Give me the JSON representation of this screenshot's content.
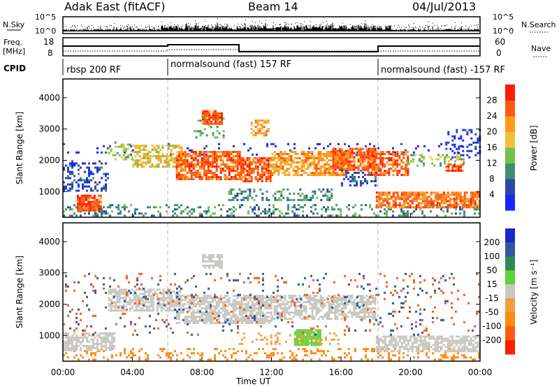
{
  "header": {
    "station": "Adak East (fitACF)",
    "beam": "Beam 14",
    "date": "04/Jul/2013"
  },
  "strip_labels": {
    "nsky": "N.Sky",
    "nsearch": "N.Search",
    "freq": "Freq.",
    "freq_unit": "[MHz]",
    "nave": "Nave",
    "cpid": "CPID",
    "noise_ticks": [
      "10^5",
      "10^0"
    ],
    "freq_ticks": [
      "18",
      "8"
    ],
    "nave_ticks": [
      "60",
      "0"
    ]
  },
  "cpid_segments": [
    {
      "start": "00:00",
      "label": "rbsp 200 RF"
    },
    {
      "start": "06:00",
      "label": "normalsound (fast) 157 RF"
    },
    {
      "start": "18:00",
      "label": "normalsound (fast) -157 RF"
    }
  ],
  "colors": {
    "frame": "#000000",
    "divider": "#b4b4b4",
    "missing": "#ffffff"
  },
  "chart_data": [
    {
      "type": "heatmap",
      "title": "",
      "xlabel": "Time UT",
      "ylabel": "Slant Range [km]",
      "x_ticks": [
        "00:00",
        "04:00",
        "08:00",
        "12:00",
        "16:00",
        "20:00",
        "00:00"
      ],
      "xlim": [
        0,
        24
      ],
      "ylim": [
        180,
        4600
      ],
      "y_ticks": [
        1000,
        2000,
        3000,
        4000
      ],
      "colorbar": {
        "label": "Power [dB]",
        "ticks": [
          "4",
          "8",
          "12",
          "16",
          "20",
          "24",
          "28"
        ],
        "bins": [
          {
            "max": 4,
            "color": "#1428ff"
          },
          {
            "max": 8,
            "color": "#2a4aa8"
          },
          {
            "max": 12,
            "color": "#3f8f6e"
          },
          {
            "max": 16,
            "color": "#6fc24a"
          },
          {
            "max": 20,
            "color": "#f0c03c"
          },
          {
            "max": 24,
            "color": "#ff9a1e"
          },
          {
            "max": 28,
            "color": "#ff5a10"
          },
          {
            "max": 32,
            "color": "#ff1e00"
          }
        ]
      },
      "layers": [
        {
          "t0": 0.0,
          "t1": 24.0,
          "r0": 2150,
          "r1": 2550,
          "value": 2,
          "density": 0.06
        },
        {
          "t0": 0.0,
          "t1": 24.0,
          "r0": 200,
          "r1": 600,
          "value": 10,
          "density": 0.28
        },
        {
          "t0": 0.8,
          "t1": 2.2,
          "r0": 400,
          "r1": 900,
          "value": 27,
          "density": 0.82
        },
        {
          "t0": 0.0,
          "t1": 2.6,
          "r0": 1000,
          "r1": 2000,
          "value": 5,
          "density": 0.35
        },
        {
          "t0": 2.6,
          "t1": 4.0,
          "r0": 2000,
          "r1": 2600,
          "value": 15,
          "density": 0.35
        },
        {
          "t0": 4.0,
          "t1": 6.8,
          "r0": 1800,
          "r1": 2500,
          "value": 18,
          "density": 0.55
        },
        {
          "t0": 6.5,
          "t1": 10.2,
          "r0": 1400,
          "r1": 2300,
          "value": 26,
          "density": 0.75
        },
        {
          "t0": 7.5,
          "t1": 9.3,
          "r0": 2700,
          "r1": 3500,
          "value": 12,
          "density": 0.25
        },
        {
          "t0": 8.0,
          "t1": 9.2,
          "r0": 3150,
          "r1": 3600,
          "value": 27,
          "density": 0.85
        },
        {
          "t0": 10.2,
          "t1": 12.0,
          "r0": 1300,
          "r1": 2100,
          "value": 26,
          "density": 0.8
        },
        {
          "t0": 10.8,
          "t1": 11.8,
          "r0": 2800,
          "r1": 3300,
          "value": 22,
          "density": 0.6
        },
        {
          "t0": 12.0,
          "t1": 16.5,
          "r0": 1500,
          "r1": 2300,
          "value": 22,
          "density": 0.7
        },
        {
          "t0": 9.5,
          "t1": 15.5,
          "r0": 700,
          "r1": 1100,
          "value": 10,
          "density": 0.35
        },
        {
          "t0": 15.5,
          "t1": 18.0,
          "r0": 1700,
          "r1": 2400,
          "value": 26,
          "density": 0.78
        },
        {
          "t0": 16.0,
          "t1": 18.0,
          "r0": 1200,
          "r1": 1700,
          "value": 6,
          "density": 0.4
        },
        {
          "t0": 17.5,
          "t1": 19.8,
          "r0": 1500,
          "r1": 2300,
          "value": 26,
          "density": 0.7
        },
        {
          "t0": 18.0,
          "t1": 24.0,
          "r0": 500,
          "r1": 1000,
          "value": 25,
          "density": 0.75
        },
        {
          "t0": 19.5,
          "t1": 23.0,
          "r0": 1800,
          "r1": 2200,
          "value": 14,
          "density": 0.3
        },
        {
          "t0": 22.0,
          "t1": 23.0,
          "r0": 1650,
          "r1": 1900,
          "value": 26,
          "density": 0.7
        },
        {
          "t0": 22.0,
          "t1": 24.0,
          "r0": 2100,
          "r1": 3000,
          "value": 3,
          "density": 0.25
        }
      ]
    },
    {
      "type": "heatmap",
      "title": "",
      "xlabel": "Time UT",
      "ylabel": "Slant Range [km]",
      "x_ticks": [
        "00:00",
        "04:00",
        "08:00",
        "12:00",
        "16:00",
        "20:00",
        "00:00"
      ],
      "xlim": [
        0,
        24
      ],
      "ylim": [
        180,
        4600
      ],
      "y_ticks": [
        1000,
        2000,
        3000,
        4000
      ],
      "colorbar": {
        "label": "Velocity [m s⁻¹]",
        "ticks": [
          "200",
          "100",
          "50",
          "15",
          "-15",
          "-50",
          "-100",
          "-200"
        ],
        "bins": [
          {
            "max": 999,
            "color": "#1a28d0"
          },
          {
            "max": 200,
            "color": "#2a5aa0"
          },
          {
            "max": 100,
            "color": "#2f8a50"
          },
          {
            "max": 50,
            "color": "#5ad23a"
          },
          {
            "max": 15,
            "color": "#c8c8c0"
          },
          {
            "max": -15,
            "color": "#f0a040"
          },
          {
            "max": -50,
            "color": "#ff8a10"
          },
          {
            "max": -100,
            "color": "#ff5a10"
          },
          {
            "max": -200,
            "color": "#ff1e00"
          }
        ]
      },
      "layers": [
        {
          "t0": 0.0,
          "t1": 24.0,
          "r0": 200,
          "r1": 600,
          "value": -60,
          "density": 0.22
        },
        {
          "t0": 0.0,
          "t1": 3.0,
          "r0": 500,
          "r1": 1100,
          "value": 0,
          "density": 0.7
        },
        {
          "t0": 2.6,
          "t1": 6.8,
          "r0": 1800,
          "r1": 2500,
          "value": 0,
          "density": 0.65
        },
        {
          "t0": 6.5,
          "t1": 12.0,
          "r0": 1400,
          "r1": 2300,
          "value": 0,
          "density": 0.72
        },
        {
          "t0": 8.0,
          "t1": 9.2,
          "r0": 3150,
          "r1": 3600,
          "value": 0,
          "density": 0.7
        },
        {
          "t0": 12.0,
          "t1": 18.0,
          "r0": 1500,
          "r1": 2300,
          "value": 0,
          "density": 0.65
        },
        {
          "t0": 13.3,
          "t1": 14.8,
          "r0": 700,
          "r1": 1200,
          "value": 30,
          "density": 0.85
        },
        {
          "t0": 18.0,
          "t1": 24.0,
          "r0": 500,
          "r1": 1000,
          "value": 0,
          "density": 0.7
        },
        {
          "t0": 10.0,
          "t1": 16.0,
          "r0": 700,
          "r1": 1100,
          "value": -30,
          "density": 0.2
        },
        {
          "t0": 0.0,
          "t1": 24.0,
          "r0": 1000,
          "r1": 3000,
          "value": 150,
          "density": 0.04
        },
        {
          "t0": 0.0,
          "t1": 24.0,
          "r0": 1000,
          "r1": 3000,
          "value": -150,
          "density": 0.04
        }
      ]
    }
  ]
}
